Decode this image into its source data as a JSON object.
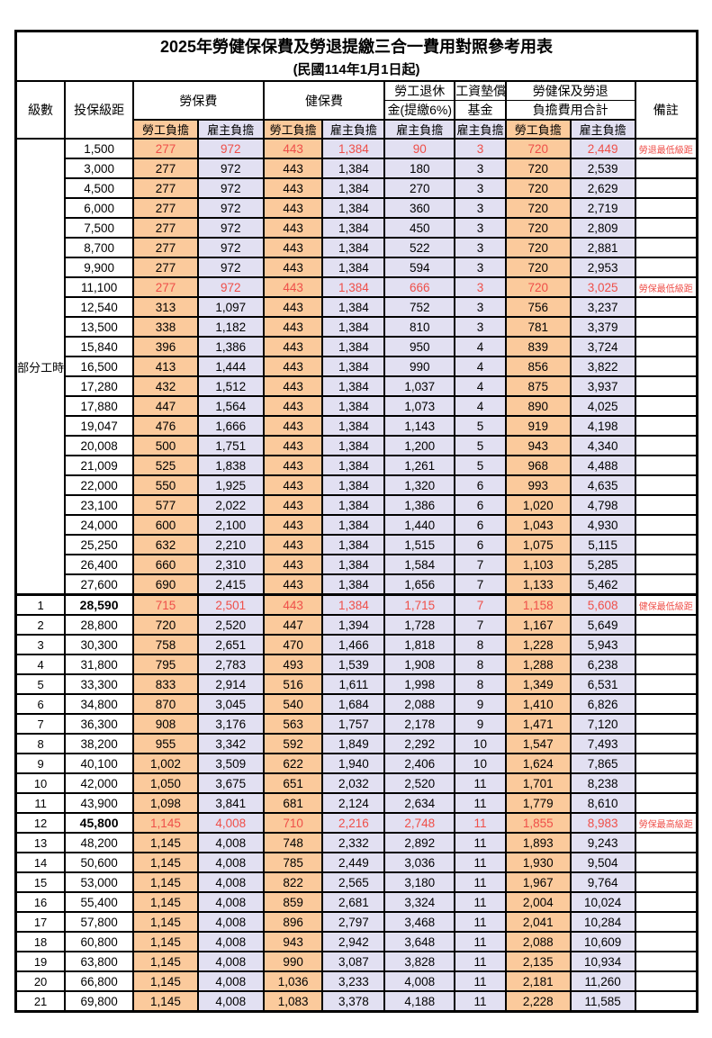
{
  "title": "2025年勞健保保費及勞退提繳三合一費用對照參考用表",
  "subtitle": "(民國114年1月1日起)",
  "header": {
    "level": "級數",
    "bracket": "投保級距",
    "labor_ins": "勞保費",
    "health_ins": "健保費",
    "pension_l1": "勞工退休",
    "pension_l2": "金(提繳6%)",
    "wage_fund_l1": "工資墊償",
    "wage_fund_l2": "基金",
    "total_l1": "勞健保及勞退",
    "total_l2": "負擔費用合計",
    "remark": "備註",
    "sub": [
      "勞工負擔",
      "雇主負擔",
      "勞工負擔",
      "雇主負擔",
      "雇主負擔",
      "雇主負擔",
      "勞工負擔",
      "雇主負擔"
    ]
  },
  "part_time_label": "部分工時",
  "part_time_rowspan": 23,
  "colors": {
    "employee_bg": "#fbca9c",
    "employer_bg": "#e2e0f2",
    "highlight_text": "#ef4f49"
  },
  "rows": [
    {
      "bracket": "1,500",
      "values": [
        "277",
        "972",
        "443",
        "1,384",
        "90",
        "3",
        "720",
        "2,449"
      ],
      "remark": "勞退最低級距",
      "highlight": true
    },
    {
      "bracket": "3,000",
      "values": [
        "277",
        "972",
        "443",
        "1,384",
        "180",
        "3",
        "720",
        "2,539"
      ],
      "remark": ""
    },
    {
      "bracket": "4,500",
      "values": [
        "277",
        "972",
        "443",
        "1,384",
        "270",
        "3",
        "720",
        "2,629"
      ],
      "remark": ""
    },
    {
      "bracket": "6,000",
      "values": [
        "277",
        "972",
        "443",
        "1,384",
        "360",
        "3",
        "720",
        "2,719"
      ],
      "remark": ""
    },
    {
      "bracket": "7,500",
      "values": [
        "277",
        "972",
        "443",
        "1,384",
        "450",
        "3",
        "720",
        "2,809"
      ],
      "remark": ""
    },
    {
      "bracket": "8,700",
      "values": [
        "277",
        "972",
        "443",
        "1,384",
        "522",
        "3",
        "720",
        "2,881"
      ],
      "remark": ""
    },
    {
      "bracket": "9,900",
      "values": [
        "277",
        "972",
        "443",
        "1,384",
        "594",
        "3",
        "720",
        "2,953"
      ],
      "remark": ""
    },
    {
      "bracket": "11,100",
      "values": [
        "277",
        "972",
        "443",
        "1,384",
        "666",
        "3",
        "720",
        "3,025"
      ],
      "remark": "勞保最低級距",
      "highlight": true
    },
    {
      "bracket": "12,540",
      "values": [
        "313",
        "1,097",
        "443",
        "1,384",
        "752",
        "3",
        "756",
        "3,237"
      ],
      "remark": ""
    },
    {
      "bracket": "13,500",
      "values": [
        "338",
        "1,182",
        "443",
        "1,384",
        "810",
        "3",
        "781",
        "3,379"
      ],
      "remark": ""
    },
    {
      "bracket": "15,840",
      "values": [
        "396",
        "1,386",
        "443",
        "1,384",
        "950",
        "4",
        "839",
        "3,724"
      ],
      "remark": ""
    },
    {
      "bracket": "16,500",
      "values": [
        "413",
        "1,444",
        "443",
        "1,384",
        "990",
        "4",
        "856",
        "3,822"
      ],
      "remark": ""
    },
    {
      "bracket": "17,280",
      "values": [
        "432",
        "1,512",
        "443",
        "1,384",
        "1,037",
        "4",
        "875",
        "3,937"
      ],
      "remark": ""
    },
    {
      "bracket": "17,880",
      "values": [
        "447",
        "1,564",
        "443",
        "1,384",
        "1,073",
        "4",
        "890",
        "4,025"
      ],
      "remark": ""
    },
    {
      "bracket": "19,047",
      "values": [
        "476",
        "1,666",
        "443",
        "1,384",
        "1,143",
        "5",
        "919",
        "4,198"
      ],
      "remark": ""
    },
    {
      "bracket": "20,008",
      "values": [
        "500",
        "1,751",
        "443",
        "1,384",
        "1,200",
        "5",
        "943",
        "4,340"
      ],
      "remark": ""
    },
    {
      "bracket": "21,009",
      "values": [
        "525",
        "1,838",
        "443",
        "1,384",
        "1,261",
        "5",
        "968",
        "4,488"
      ],
      "remark": ""
    },
    {
      "bracket": "22,000",
      "values": [
        "550",
        "1,925",
        "443",
        "1,384",
        "1,320",
        "6",
        "993",
        "4,635"
      ],
      "remark": ""
    },
    {
      "bracket": "23,100",
      "values": [
        "577",
        "2,022",
        "443",
        "1,384",
        "1,386",
        "6",
        "1,020",
        "4,798"
      ],
      "remark": ""
    },
    {
      "bracket": "24,000",
      "values": [
        "600",
        "2,100",
        "443",
        "1,384",
        "1,440",
        "6",
        "1,043",
        "4,930"
      ],
      "remark": ""
    },
    {
      "bracket": "25,250",
      "values": [
        "632",
        "2,210",
        "443",
        "1,384",
        "1,515",
        "6",
        "1,075",
        "5,115"
      ],
      "remark": ""
    },
    {
      "bracket": "26,400",
      "values": [
        "660",
        "2,310",
        "443",
        "1,384",
        "1,584",
        "7",
        "1,103",
        "5,285"
      ],
      "remark": ""
    },
    {
      "bracket": "27,600",
      "values": [
        "690",
        "2,415",
        "443",
        "1,384",
        "1,656",
        "7",
        "1,133",
        "5,462"
      ],
      "remark": ""
    },
    {
      "level": "1",
      "bracket": "28,590",
      "values": [
        "715",
        "2,501",
        "443",
        "1,384",
        "1,715",
        "7",
        "1,158",
        "5,608"
      ],
      "remark": "健保最低級距",
      "highlight": true,
      "bold_bracket": true,
      "section_start": true
    },
    {
      "level": "2",
      "bracket": "28,800",
      "values": [
        "720",
        "2,520",
        "447",
        "1,394",
        "1,728",
        "7",
        "1,167",
        "5,649"
      ],
      "remark": ""
    },
    {
      "level": "3",
      "bracket": "30,300",
      "values": [
        "758",
        "2,651",
        "470",
        "1,466",
        "1,818",
        "8",
        "1,228",
        "5,943"
      ],
      "remark": ""
    },
    {
      "level": "4",
      "bracket": "31,800",
      "values": [
        "795",
        "2,783",
        "493",
        "1,539",
        "1,908",
        "8",
        "1,288",
        "6,238"
      ],
      "remark": ""
    },
    {
      "level": "5",
      "bracket": "33,300",
      "values": [
        "833",
        "2,914",
        "516",
        "1,611",
        "1,998",
        "8",
        "1,349",
        "6,531"
      ],
      "remark": ""
    },
    {
      "level": "6",
      "bracket": "34,800",
      "values": [
        "870",
        "3,045",
        "540",
        "1,684",
        "2,088",
        "9",
        "1,410",
        "6,826"
      ],
      "remark": ""
    },
    {
      "level": "7",
      "bracket": "36,300",
      "values": [
        "908",
        "3,176",
        "563",
        "1,757",
        "2,178",
        "9",
        "1,471",
        "7,120"
      ],
      "remark": ""
    },
    {
      "level": "8",
      "bracket": "38,200",
      "values": [
        "955",
        "3,342",
        "592",
        "1,849",
        "2,292",
        "10",
        "1,547",
        "7,493"
      ],
      "remark": ""
    },
    {
      "level": "9",
      "bracket": "40,100",
      "values": [
        "1,002",
        "3,509",
        "622",
        "1,940",
        "2,406",
        "10",
        "1,624",
        "7,865"
      ],
      "remark": ""
    },
    {
      "level": "10",
      "bracket": "42,000",
      "values": [
        "1,050",
        "3,675",
        "651",
        "2,032",
        "2,520",
        "11",
        "1,701",
        "8,238"
      ],
      "remark": ""
    },
    {
      "level": "11",
      "bracket": "43,900",
      "values": [
        "1,098",
        "3,841",
        "681",
        "2,124",
        "2,634",
        "11",
        "1,779",
        "8,610"
      ],
      "remark": ""
    },
    {
      "level": "12",
      "bracket": "45,800",
      "values": [
        "1,145",
        "4,008",
        "710",
        "2,216",
        "2,748",
        "11",
        "1,855",
        "8,983"
      ],
      "remark": "勞保最高級距",
      "highlight": true,
      "bold_bracket": true
    },
    {
      "level": "13",
      "bracket": "48,200",
      "values": [
        "1,145",
        "4,008",
        "748",
        "2,332",
        "2,892",
        "11",
        "1,893",
        "9,243"
      ],
      "remark": ""
    },
    {
      "level": "14",
      "bracket": "50,600",
      "values": [
        "1,145",
        "4,008",
        "785",
        "2,449",
        "3,036",
        "11",
        "1,930",
        "9,504"
      ],
      "remark": ""
    },
    {
      "level": "15",
      "bracket": "53,000",
      "values": [
        "1,145",
        "4,008",
        "822",
        "2,565",
        "3,180",
        "11",
        "1,967",
        "9,764"
      ],
      "remark": ""
    },
    {
      "level": "16",
      "bracket": "55,400",
      "values": [
        "1,145",
        "4,008",
        "859",
        "2,681",
        "3,324",
        "11",
        "2,004",
        "10,024"
      ],
      "remark": ""
    },
    {
      "level": "17",
      "bracket": "57,800",
      "values": [
        "1,145",
        "4,008",
        "896",
        "2,797",
        "3,468",
        "11",
        "2,041",
        "10,284"
      ],
      "remark": ""
    },
    {
      "level": "18",
      "bracket": "60,800",
      "values": [
        "1,145",
        "4,008",
        "943",
        "2,942",
        "3,648",
        "11",
        "2,088",
        "10,609"
      ],
      "remark": ""
    },
    {
      "level": "19",
      "bracket": "63,800",
      "values": [
        "1,145",
        "4,008",
        "990",
        "3,087",
        "3,828",
        "11",
        "2,135",
        "10,934"
      ],
      "remark": ""
    },
    {
      "level": "20",
      "bracket": "66,800",
      "values": [
        "1,145",
        "4,008",
        "1,036",
        "3,233",
        "4,008",
        "11",
        "2,181",
        "11,260"
      ],
      "remark": ""
    },
    {
      "level": "21",
      "bracket": "69,800",
      "values": [
        "1,145",
        "4,008",
        "1,083",
        "3,378",
        "4,188",
        "11",
        "2,228",
        "11,585"
      ],
      "remark": ""
    }
  ]
}
